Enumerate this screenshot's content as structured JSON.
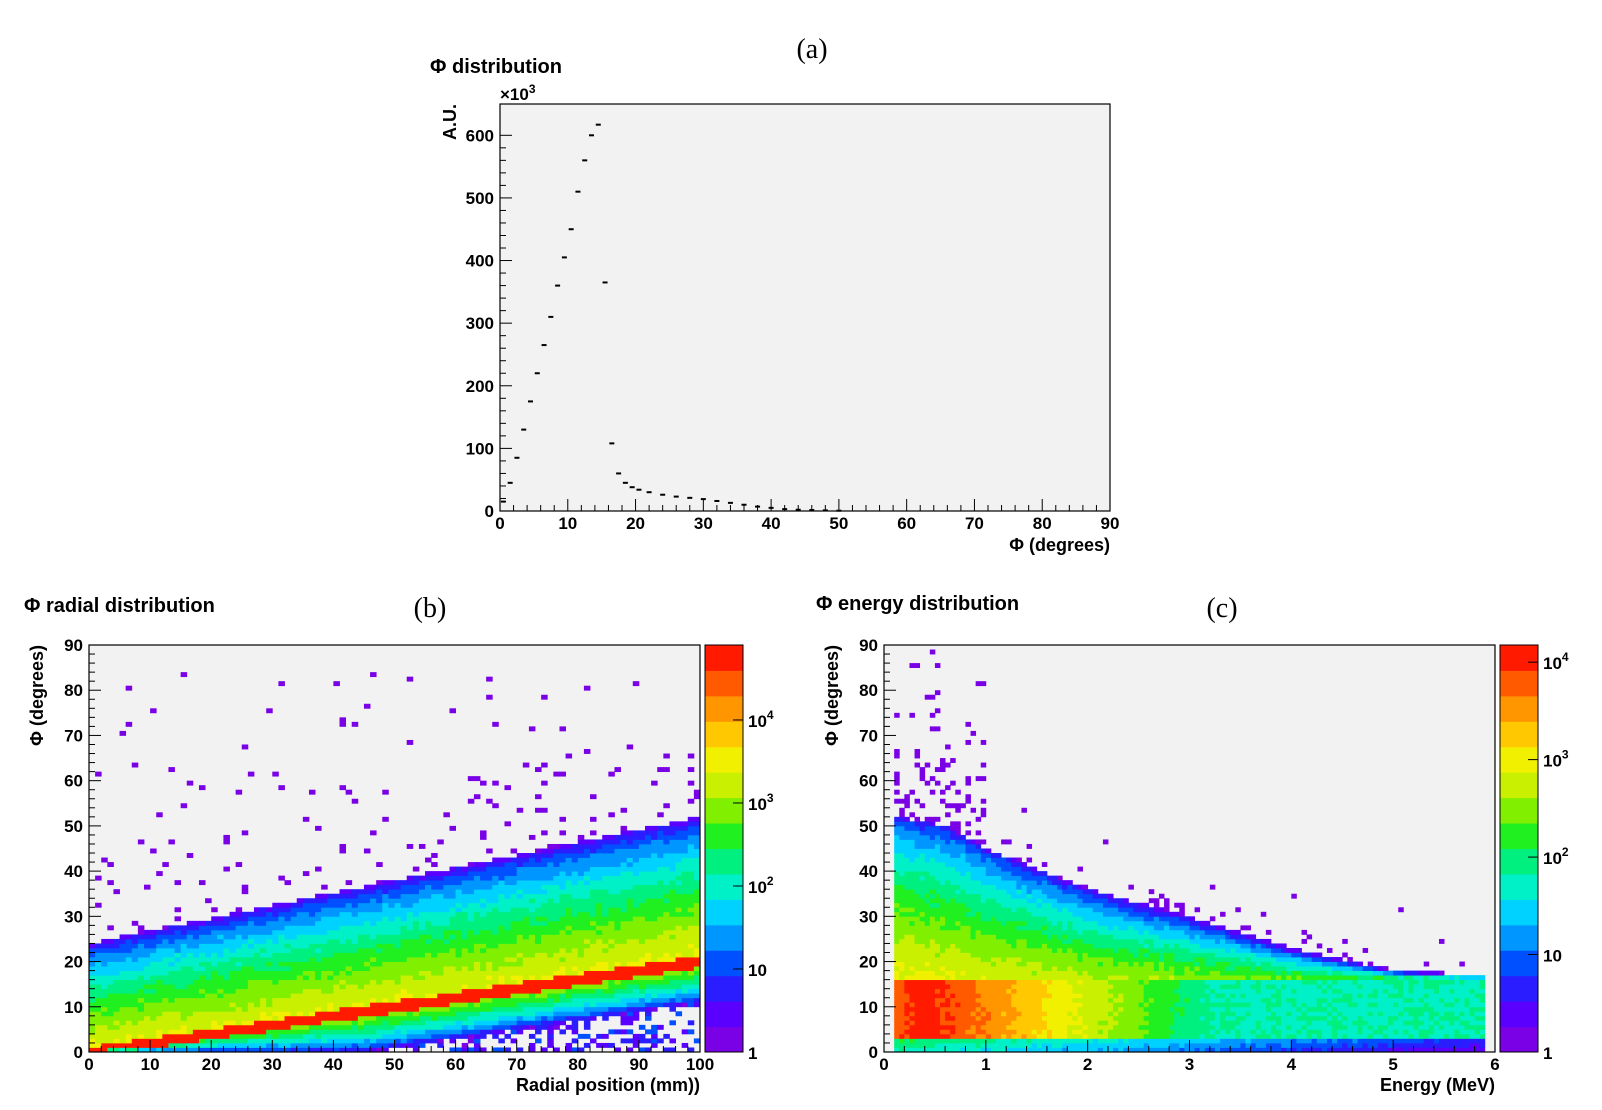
{
  "chart_data": [
    {
      "panel_tag": "(a)",
      "type": "histogram",
      "title": "Φ distribution",
      "xlabel": "Φ (degrees)",
      "ylabel": "A.U.",
      "yscale_label": "×10",
      "yscale_exp": "3",
      "xlim": [
        0,
        90
      ],
      "ylim": [
        0,
        650
      ],
      "xticks": [
        "0",
        "10",
        "20",
        "30",
        "40",
        "50",
        "60",
        "70",
        "80",
        "90"
      ],
      "yticks": [
        "0",
        "100",
        "200",
        "300",
        "400",
        "500",
        "600"
      ],
      "x": [
        0.5,
        1.5,
        2.5,
        3.5,
        4.5,
        5.5,
        6.5,
        7.5,
        8.5,
        9.5,
        10.5,
        11.5,
        12.5,
        13.5,
        14.5,
        15.5,
        16.5,
        17.5,
        18.5,
        19.5,
        20.5,
        22,
        24,
        26,
        28,
        30,
        32,
        34,
        36,
        38,
        40,
        42,
        44,
        46,
        48,
        50
      ],
      "values": [
        15,
        45,
        85,
        130,
        175,
        220,
        265,
        310,
        360,
        405,
        450,
        510,
        560,
        600,
        617,
        365,
        108,
        60,
        45,
        38,
        34,
        30,
        26,
        23,
        21,
        19,
        16,
        13,
        10,
        7,
        5,
        3,
        2,
        1.5,
        1,
        0.5
      ],
      "grid": false,
      "background": "#f2f2f2"
    },
    {
      "panel_tag": "(b)",
      "type": "heatmap",
      "title": "Φ radial distribution",
      "xlabel": "Radial position (mm))",
      "ylabel": "Φ (degrees)",
      "xlim": [
        0,
        100
      ],
      "ylim": [
        0,
        90
      ],
      "xticks": [
        "0",
        "10",
        "20",
        "30",
        "40",
        "50",
        "60",
        "70",
        "80",
        "90",
        "100"
      ],
      "yticks": [
        "0",
        "10",
        "20",
        "30",
        "40",
        "50",
        "60",
        "70",
        "80",
        "90"
      ],
      "colorbar_scale": "log",
      "colorbar_range": [
        1,
        80000
      ],
      "colorbar_labels": [
        {
          "text": "1",
          "exp": ""
        },
        {
          "text": "10",
          "exp": ""
        },
        {
          "text": "10",
          "exp": "2"
        },
        {
          "text": "10",
          "exp": "3"
        },
        {
          "text": "10",
          "exp": "4"
        }
      ],
      "ridge_peak": {
        "x": [
          0,
          100
        ],
        "y": [
          0,
          20
        ]
      },
      "band_upper_edge": {
        "x": [
          0,
          100
        ],
        "y": [
          24,
          52
        ]
      },
      "band_lower_edge": {
        "x": [
          0,
          100
        ],
        "y": [
          0,
          10
        ]
      },
      "max_counts": 80000,
      "background": "#f2f2f2"
    },
    {
      "panel_tag": "(c)",
      "type": "heatmap",
      "title": "Φ energy distribution",
      "xlabel": "Energy (MeV)",
      "ylabel": "Φ (degrees)",
      "xlim": [
        0,
        6
      ],
      "ylim": [
        0,
        90
      ],
      "xticks": [
        "0",
        "1",
        "2",
        "3",
        "4",
        "5",
        "6"
      ],
      "yticks": [
        "0",
        "10",
        "20",
        "30",
        "40",
        "50",
        "60",
        "70",
        "80",
        "90"
      ],
      "colorbar_scale": "log",
      "colorbar_range": [
        1,
        15000
      ],
      "colorbar_labels": [
        {
          "text": "1",
          "exp": ""
        },
        {
          "text": "10",
          "exp": ""
        },
        {
          "text": "10",
          "exp": "2"
        },
        {
          "text": "10",
          "exp": "3"
        },
        {
          "text": "10",
          "exp": "4"
        }
      ],
      "hot_band": {
        "y": [
          3,
          16
        ],
        "x_peak": 0.4,
        "counts_peak": 15000
      },
      "upper_envelope": {
        "x": [
          0.1,
          0.6,
          1.0,
          2.0,
          3.0,
          4.0,
          5.0,
          5.9
        ],
        "y": [
          52,
          50,
          45,
          36,
          30,
          23,
          18,
          17
        ]
      },
      "background": "#f2f2f2"
    }
  ]
}
